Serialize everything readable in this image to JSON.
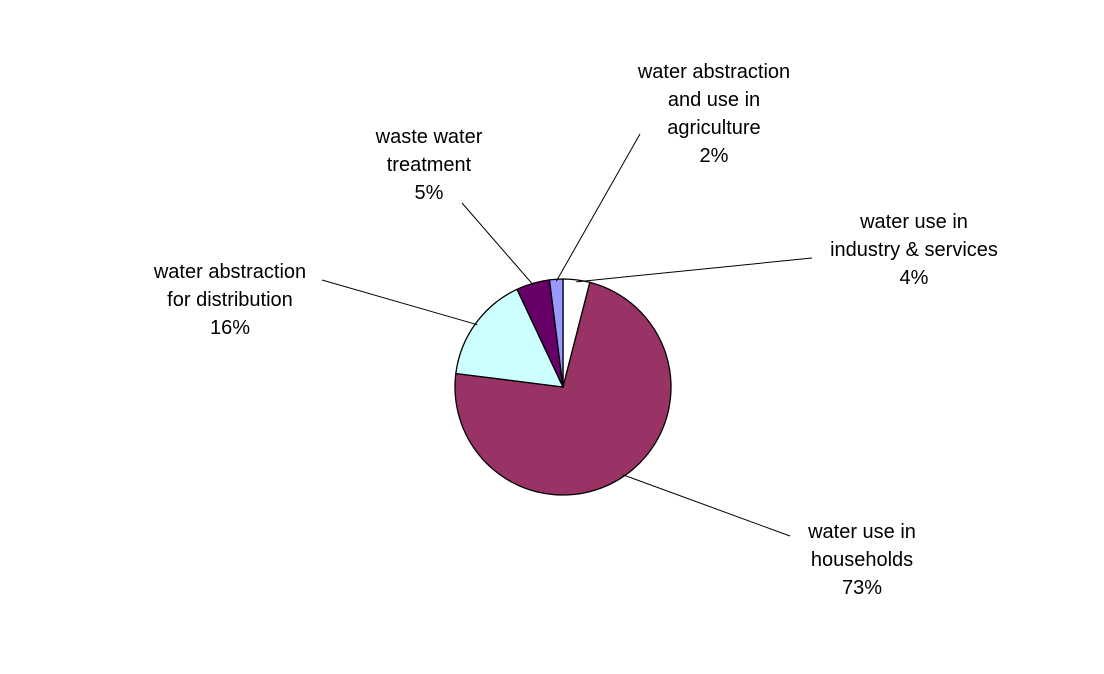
{
  "chart_data": {
    "type": "pie",
    "slices": [
      {
        "name": "water use in industry & services",
        "label_lines": [
          "water use in",
          "industry  & services"
        ],
        "pct_label": "4%",
        "value": 4,
        "color": "#FFFFFF"
      },
      {
        "name": "water use in households",
        "label_lines": [
          "water use in",
          "households"
        ],
        "pct_label": "73%",
        "value": 73,
        "color": "#993366"
      },
      {
        "name": "water abstraction for distribution",
        "label_lines": [
          "water abstraction",
          "for distribution"
        ],
        "pct_label": "16%",
        "value": 16,
        "color": "#CCFFFF"
      },
      {
        "name": "waste water treatment",
        "label_lines": [
          "waste water",
          "treatment"
        ],
        "pct_label": "5%",
        "value": 5,
        "color": "#660066"
      },
      {
        "name": "water abstraction and use in agriculture",
        "label_lines": [
          "water abstraction",
          "and use in",
          "agriculture"
        ],
        "pct_label": "2%",
        "value": 2,
        "color": "#9999FF"
      }
    ],
    "start_angle_deg": 0,
    "direction": "clockwise",
    "legend": "none",
    "data_labels": "category and percent, outside with leader lines"
  }
}
